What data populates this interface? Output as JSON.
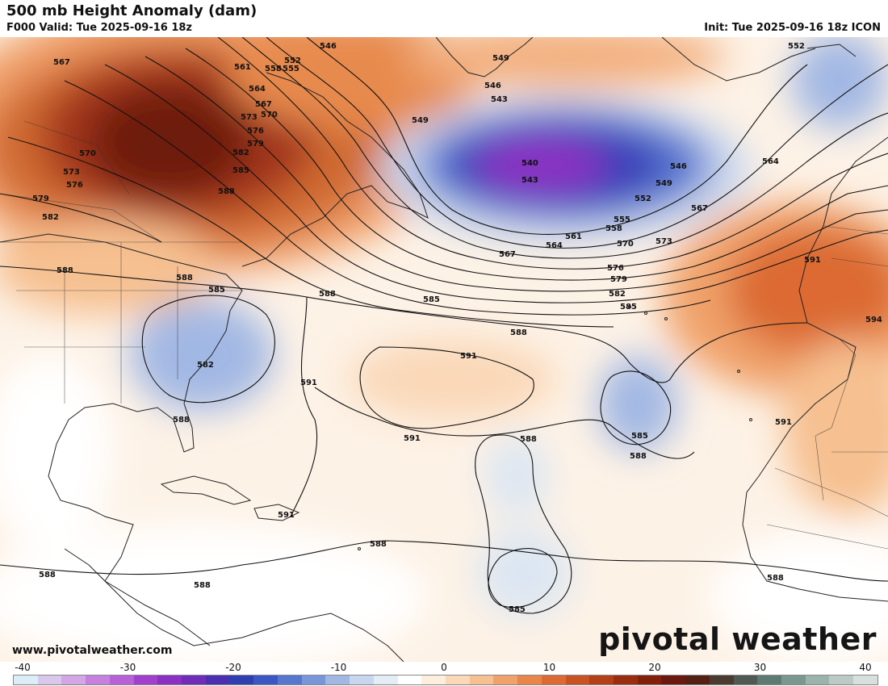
{
  "header": {
    "title": "500 mb Height Anomaly (dam)",
    "valid": "F000 Valid: Tue 2025-09-16 18z",
    "init": "Init: Tue 2025-09-16 18z ICON"
  },
  "footer": {
    "website": "www.pivotalweather.com",
    "brand": "pivotal weather"
  },
  "contour_labels": [
    "546",
    "549",
    "552",
    "555",
    "558",
    "561",
    "564",
    "567",
    "570",
    "573",
    "576",
    "579",
    "582",
    "585",
    "588",
    "591",
    "594",
    "540",
    "543"
  ],
  "legend": {
    "ticks": [
      "-40",
      "-30",
      "-20",
      "-10",
      "0",
      "10",
      "20",
      "30",
      "40"
    ],
    "colors": [
      "#dbeef8",
      "#d9c8ec",
      "#d3a6e6",
      "#c680de",
      "#b860d6",
      "#a23fcc",
      "#8a30c2",
      "#6f2cb8",
      "#4a2fb0",
      "#2f3fb0",
      "#3a57c4",
      "#5676cf",
      "#7996d9",
      "#a2b8e4",
      "#c9d7ee",
      "#e4ecf6",
      "#ffffff",
      "#fdeede",
      "#fad8b8",
      "#f6c090",
      "#f0a26a",
      "#e8864a",
      "#dc6a32",
      "#c95222",
      "#b43e16",
      "#9c2c10",
      "#82200c",
      "#6a1810",
      "#552014",
      "#4a3a30",
      "#4f5a55",
      "#5f7a72",
      "#7a9890",
      "#9ab4ac",
      "#bccac6",
      "#d8e0dd"
    ]
  }
}
